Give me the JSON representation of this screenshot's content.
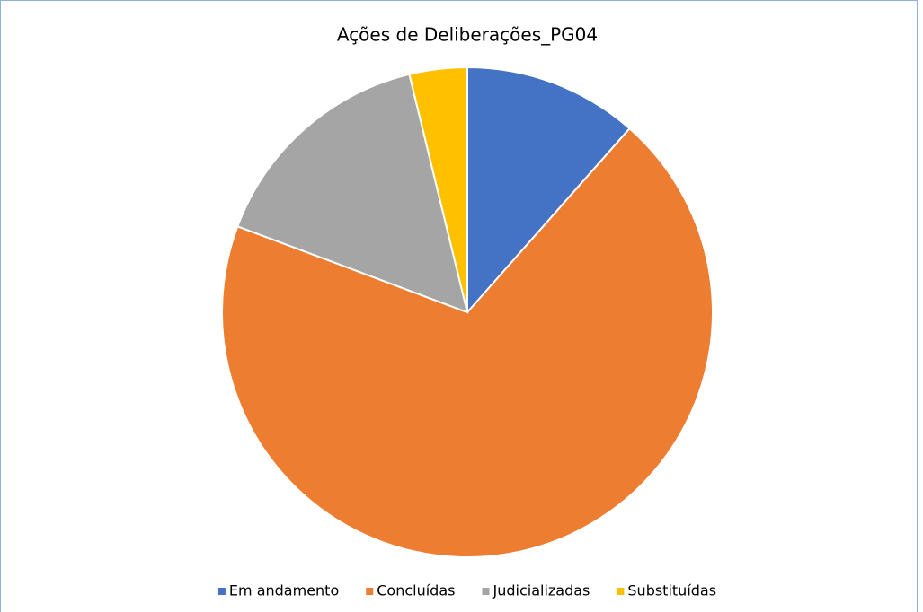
{
  "chart_data": {
    "type": "pie",
    "title": "Ações de Deliberações_PG04",
    "categories": [
      "Em andamento",
      "Concluídas",
      "Judicializadas",
      "Substituídas"
    ],
    "values": [
      11.5,
      69.2,
      15.5,
      3.8
    ],
    "colors": [
      "#4472c4",
      "#ed7d31",
      "#a5a5a5",
      "#ffc000"
    ],
    "legend": "bottom"
  }
}
